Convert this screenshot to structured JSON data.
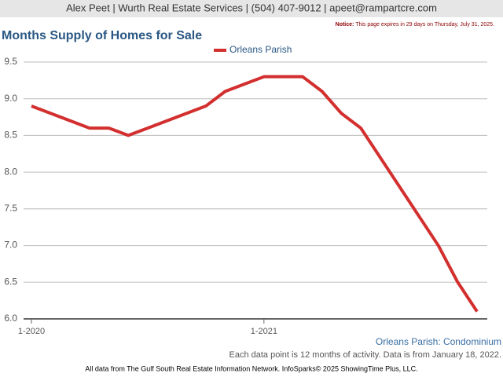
{
  "header": "Alex Peet | Wurth Real Estate Services | (504) 407-9012 | apeet@rampartcre.com",
  "notice": {
    "label": "Notice:",
    "text": "This page expires in 29 days on Thursday, July 31, 2025."
  },
  "chart_data": {
    "type": "line",
    "title": "Months Supply of Homes for Sale",
    "subtitle": "Orleans Parish: Condominium",
    "note": "Each data point is 12 months of activity. Data is from January 18, 2022.",
    "categories": [
      "1-2020",
      null,
      null,
      null,
      null,
      null,
      null,
      null,
      null,
      null,
      null,
      null,
      "1-2021",
      null,
      null,
      null,
      null,
      null,
      null,
      null,
      null,
      null,
      null,
      null
    ],
    "series": [
      {
        "name": "Orleans Parish",
        "color": "#d32f2f",
        "values": [
          8.9,
          8.8,
          8.7,
          8.6,
          8.6,
          8.5,
          8.6,
          8.7,
          8.8,
          8.9,
          9.1,
          9.2,
          9.3,
          9.3,
          9.3,
          9.1,
          8.8,
          8.6,
          8.2,
          7.8,
          7.4,
          7.0,
          6.5,
          6.1
        ]
      }
    ],
    "ylim": [
      6,
      9.5
    ],
    "yticks": [
      {
        "value": 6,
        "label": "6.0"
      },
      6.5,
      {
        "value": 7,
        "label": "7.0"
      },
      7.5,
      {
        "value": 8,
        "label": "8.0"
      },
      8.5,
      {
        "value": 9,
        "label": "9.0"
      },
      9.5
    ],
    "grid": true,
    "legend": "top"
  },
  "footer": "All data from The Gulf South Real Estate Information Network. InfoSparks© 2025 ShowingTime Plus, LLC."
}
